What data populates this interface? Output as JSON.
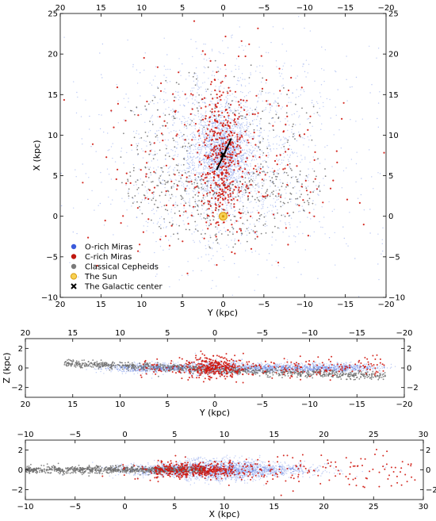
{
  "chart_data": [
    {
      "type": "scatter",
      "panel": "face-on X vs Y",
      "xlabel": "Y (kpc)",
      "ylabel": "X (kpc)",
      "xlim": [
        20,
        -20
      ],
      "ylim": [
        -10,
        25
      ],
      "xticks": [
        "20",
        "15",
        "10",
        "5",
        "0",
        "−5",
        "−10",
        "−15",
        "−20"
      ],
      "yticks": [
        "25",
        "20",
        "15",
        "10",
        "5",
        "0",
        "−5",
        "−10"
      ],
      "legend": {
        "placement": "lower-left",
        "entries": [
          {
            "label": "O-rich Miras",
            "color": "#3b5bdb",
            "marker": "circle"
          },
          {
            "label": "C-rich Miras",
            "color": "#c0180f",
            "marker": "circle"
          },
          {
            "label": "Classical Cepheids",
            "color": "#7a7a7a",
            "marker": "circle"
          },
          {
            "label": "The Sun",
            "color": "#f2c12e",
            "marker": "sun"
          },
          {
            "label": "The Galactic center",
            "color": "#000000",
            "marker": "x"
          }
        ]
      },
      "sun": {
        "y": 0,
        "x": 0
      },
      "galactic_center": {
        "y": 0,
        "x": 7.6
      },
      "bar": {
        "y1": 0.8,
        "x1": 5.7,
        "y2": -1.0,
        "x2": 9.6
      },
      "series": [
        {
          "name": "O-rich Miras",
          "color": "#4a6fe0",
          "distribution": "Dense concentration around the Galactic center (x≈7–8 kpc) with the disk extending toward x≈20; an elongated central bar"
        },
        {
          "name": "C-rich Miras",
          "color": "#d0170e",
          "distribution": "Concentrated in the bulge (y≈0, x≈3–17) and scattered through the disk, density decreasing outward"
        },
        {
          "name": "Classical Cepheids",
          "color": "#6e6e6e",
          "distribution": "Spread through the disk, mostly x≈−8 to 5, ring-like structure around the Sun"
        }
      ]
    },
    {
      "type": "scatter",
      "panel": "edge-on Z vs Y",
      "xlabel": "Y (kpc)",
      "ylabel": "Z (kpc)",
      "xlim": [
        20,
        -20
      ],
      "ylim": [
        -3,
        3
      ],
      "xticks": [
        "20",
        "15",
        "10",
        "5",
        "0",
        "−5",
        "−10",
        "−15",
        "−20"
      ],
      "yticks": [
        "2",
        "0",
        "−2"
      ],
      "series": [
        {
          "name": "O-rich Miras",
          "color": "#4a6fe0",
          "distribution": "Thin disk from y≈+10 to −15, thickest around y≈0"
        },
        {
          "name": "C-rich Miras",
          "color": "#d0170e",
          "distribution": "Clump around y≈0, z≈0, with scatter up to |z|≈2"
        },
        {
          "name": "Classical Cepheids",
          "color": "#6e6e6e",
          "distribution": "Warped thin disk: z≈+0.5 at y≈+15 to z≈−1 at y≈−15"
        }
      ]
    },
    {
      "type": "scatter",
      "panel": "edge-on Z vs X",
      "xlabel": "X (kpc)",
      "ylabel": "",
      "xlim": [
        -10,
        30
      ],
      "ylim": [
        -3,
        3
      ],
      "xticks": [
        "−10",
        "−5",
        "0",
        "5",
        "10",
        "15",
        "20",
        "25",
        "30"
      ],
      "yticks": [
        "2",
        "0",
        "−2"
      ],
      "series": [
        {
          "name": "O-rich Miras",
          "color": "#4a6fe0",
          "distribution": "Disk from x≈0 to 20, thickest around x≈8–12"
        },
        {
          "name": "C-rich Miras",
          "color": "#d0170e",
          "distribution": "Concentrated around x≈2–15, with scatter to x≈30"
        },
        {
          "name": "Classical Cepheids",
          "color": "#6e6e6e",
          "distribution": "Thin disk from x≈−10 to 10, concentrated near z≈0"
        }
      ]
    }
  ]
}
